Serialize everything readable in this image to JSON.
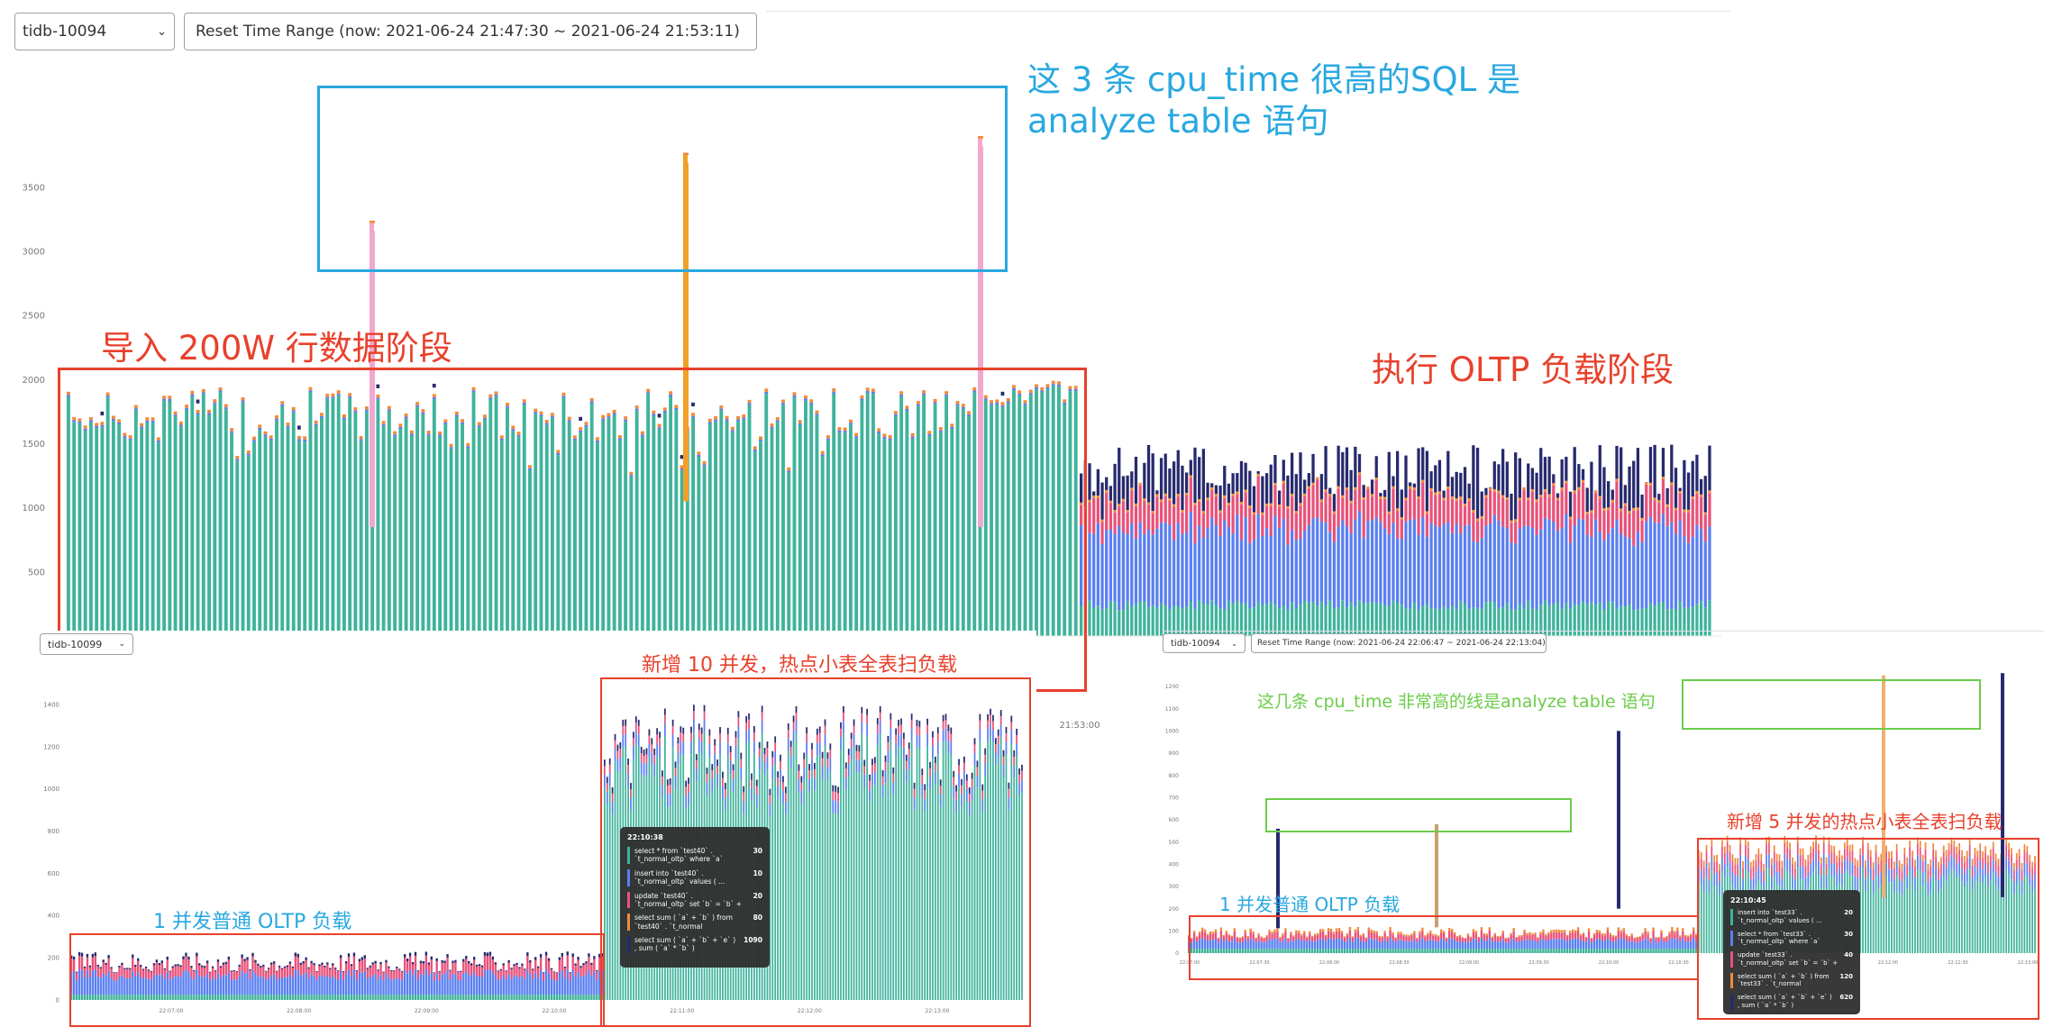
{
  "main": {
    "instance_select": "tidb-10094",
    "reset_button": "Reset Time Range (now: 2021-06-24 21:47:30 ~ 2021-06-24 21:53:11)",
    "x_tick": "21:53:00",
    "annotations": {
      "analyze": [
        "这 3 条 cpu_time 很高的SQL 是",
        "analyze table 语句"
      ],
      "import": "导入 200W 行数据阶段",
      "oltp": "执行 OLTP 负载阶段"
    }
  },
  "bottom_left": {
    "instance_select": "tidb-10099",
    "x_ticks": [
      "22:07:00",
      "22:08:00",
      "22:09:00",
      "22:10:00",
      "22:11:00",
      "22:12:00",
      "22:13:00"
    ],
    "annotations": {
      "left": "1 并发普通 OLTP 负载",
      "right": "新增 10 并发，热点小表全表扫负载"
    },
    "tooltip": {
      "time": "22:10:38",
      "rows": [
        {
          "query": "select * from `test40` . `t_normal_oltp` where `a`",
          "value": "30"
        },
        {
          "query": "insert into `test40` . `t_normal_oltp` values ( ...",
          "value": "10"
        },
        {
          "query": "update `test40` . `t_normal_oltp` set `b` = `b` +",
          "value": "20"
        },
        {
          "query": "select sum ( `a` + `b` ) from `test40` . `t_normal",
          "value": "80"
        },
        {
          "query": "select sum ( `a` + `b` + `e` ) , sum ( `a` * `b` )",
          "value": "1090"
        }
      ]
    }
  },
  "bottom_right": {
    "instance_select": "tidb-10094",
    "reset_button": "Reset Time Range (now: 2021-06-24 22:06:47 ~ 2021-06-24 22:13:04)",
    "x_ticks": [
      "22:07:00",
      "22:07:30",
      "22:08:00",
      "22:08:30",
      "22:09:00",
      "22:09:30",
      "22:10:00",
      "22:10:30",
      "22:11:00",
      "22:11:30",
      "22:12:00",
      "22:12:30",
      "22:13:00"
    ],
    "annotations": {
      "analyze": "这几条 cpu_time 非常高的线是analyze table 语句",
      "left": "1 并发普通 OLTP 负载",
      "right": "新增 5 并发的热点小表全表扫负载"
    },
    "tooltip": {
      "time": "22:10:45",
      "rows": [
        {
          "query": "insert into `test33` . `t_normal_oltp` values ( ...",
          "value": "20"
        },
        {
          "query": "select * from `test33` . `t_normal_oltp` where `a`",
          "value": "30"
        },
        {
          "query": "update `test33` . `t_normal_oltp` set `b` = `b` +",
          "value": "40"
        },
        {
          "query": "select sum ( `a` + `b` ) from `test33` . `t_normal",
          "value": "120"
        },
        {
          "query": "select sum ( `a` + `b` + `e` ) , sum ( `a` * `b` )",
          "value": "620"
        }
      ]
    }
  },
  "colors": {
    "teal": "#3fb39b",
    "blue": "#5a7ff0",
    "pink": "#e8527a",
    "orange": "#f08a3c",
    "navy": "#272a6e",
    "analyze_pink": "#f0a8d0",
    "analyze_orange": "#f0a028",
    "annotation_blue": "#29a8e0",
    "annotation_red": "#e8412c",
    "annotation_green": "#6bcc4a"
  },
  "chart_data": [
    {
      "type": "bar",
      "title": "",
      "stacked": true,
      "ylim": [
        0,
        3900
      ],
      "y_ticks": [
        500,
        1000,
        1500,
        2000,
        2500,
        3000,
        3500
      ],
      "x_ticks": [
        "21:53:00"
      ],
      "phases": [
        {
          "name": "导入 200W 行数据阶段",
          "typical_total": [
            1550,
            1950
          ]
        },
        {
          "name": "执行 OLTP 负载阶段",
          "typical_total": [
            1100,
            1500
          ]
        }
      ],
      "spikes": [
        {
          "label": "analyze table",
          "value": 3220,
          "color": "#f0a8d0"
        },
        {
          "label": "analyze table",
          "value": 3750,
          "color": "#f0a028"
        },
        {
          "label": "analyze table",
          "value": 3880,
          "color": "#f0a8d0"
        }
      ],
      "grid": false,
      "legend": "none"
    },
    {
      "type": "bar",
      "title": "",
      "stacked": true,
      "ylim": [
        0,
        1500
      ],
      "y_ticks": [
        0,
        200,
        400,
        600,
        800,
        1000,
        1200,
        1400
      ],
      "x_ticks": [
        "22:07:00",
        "22:08:00",
        "22:09:00",
        "22:10:00",
        "22:11:00",
        "22:12:00",
        "22:13:00"
      ],
      "phases": [
        {
          "name": "1 并发普通 OLTP 负载",
          "typical_total": [
            120,
            220
          ]
        },
        {
          "name": "新增 10 并发，热点小表全表扫负载",
          "typical_total": [
            1000,
            1400
          ]
        }
      ],
      "grid": false,
      "legend": "none"
    },
    {
      "type": "bar",
      "title": "",
      "stacked": true,
      "ylim": [
        0,
        1300
      ],
      "y_ticks": [
        0,
        100,
        200,
        300,
        400,
        500,
        600,
        700,
        800,
        900,
        1000,
        1100,
        1200
      ],
      "x_ticks": [
        "22:07:00",
        "22:07:30",
        "22:08:00",
        "22:08:30",
        "22:09:00",
        "22:09:30",
        "22:10:00",
        "22:10:30",
        "22:11:00",
        "22:11:30",
        "22:12:00",
        "22:12:30",
        "22:13:00"
      ],
      "phases": [
        {
          "name": "1 并发普通 OLTP 负载",
          "typical_total": [
            60,
            110
          ]
        },
        {
          "name": "新增 5 并发的热点小表全表扫负载",
          "typical_total": [
            400,
            530
          ]
        }
      ],
      "spikes": [
        {
          "label": "analyze table",
          "value": 560,
          "color": "#272a6e"
        },
        {
          "label": "analyze table",
          "value": 580,
          "color": "#c8a070"
        },
        {
          "label": "analyze table",
          "value": 1000,
          "color": "#272a6e"
        },
        {
          "label": "analyze table",
          "value": 1250,
          "color": "#f0b070"
        },
        {
          "label": "analyze table",
          "value": 1260,
          "color": "#272a6e"
        }
      ],
      "grid": false,
      "legend": "none"
    }
  ]
}
